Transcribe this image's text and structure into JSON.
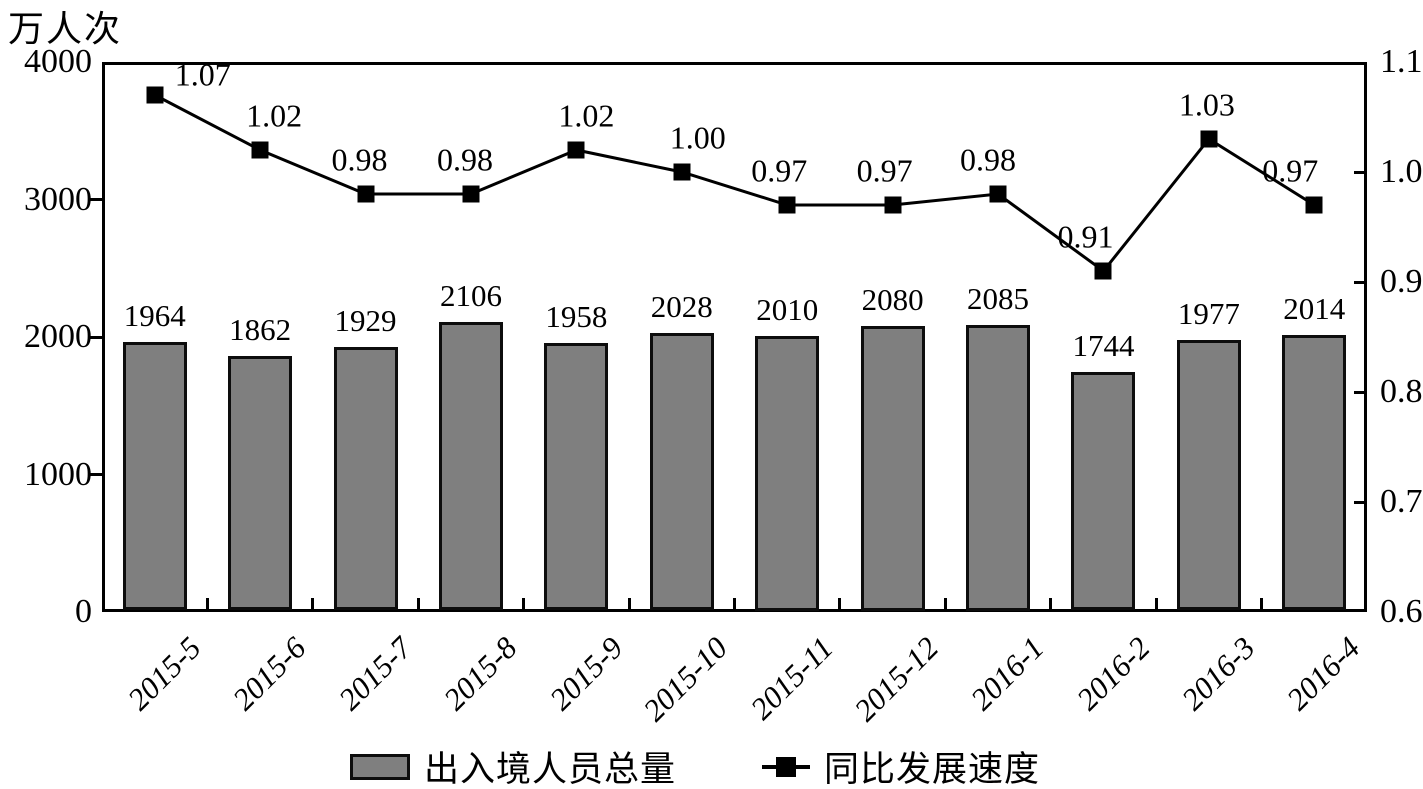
{
  "title": "万人次",
  "colors": {
    "bar_fill": "#7f7f7f",
    "line": "#000000",
    "axis": "#000000",
    "background": "#ffffff",
    "text": "#000000"
  },
  "chart_data": {
    "type": "bar",
    "subtype": "bar+line combo, dual y-axes",
    "categories": [
      "2015-5",
      "2015-6",
      "2015-7",
      "2015-8",
      "2015-9",
      "2015-10",
      "2015-11",
      "2015-12",
      "2016-1",
      "2016-2",
      "2016-3",
      "2016-4"
    ],
    "series": [
      {
        "name": "出入境人员总量",
        "type": "bar",
        "axis": "left",
        "values": [
          1964,
          1862,
          1929,
          2106,
          1958,
          2028,
          2010,
          2080,
          2085,
          1744,
          1977,
          2014
        ],
        "labels": [
          "1964",
          "1862",
          "1929",
          "2106",
          "1958",
          "2028",
          "2010",
          "2080",
          "2085",
          "1744",
          "1977",
          "2014"
        ]
      },
      {
        "name": "同比发展速度",
        "type": "line",
        "axis": "right",
        "values": [
          1.07,
          1.02,
          0.98,
          0.98,
          1.02,
          1.0,
          0.97,
          0.97,
          0.98,
          0.91,
          1.03,
          0.97
        ],
        "labels": [
          "1.07",
          "1.02",
          "0.98",
          "0.98",
          "1.02",
          "1.00",
          "0.97",
          "0.97",
          "0.98",
          "0.91",
          "1.03",
          "0.97"
        ],
        "label_offsets": [
          [
            48,
            14
          ],
          [
            14,
            0
          ],
          [
            -6,
            0
          ],
          [
            -6,
            0
          ],
          [
            10,
            0
          ],
          [
            16,
            0
          ],
          [
            -8,
            0
          ],
          [
            -8,
            0
          ],
          [
            -10,
            0
          ],
          [
            -18,
            0
          ],
          [
            -2,
            0
          ],
          [
            -24,
            0
          ]
        ]
      }
    ],
    "left_axis": {
      "label": "万人次",
      "min": 0,
      "max": 4000,
      "ticks": [
        "4000",
        "3000",
        "2000",
        "1000",
        "0"
      ],
      "tick_values": [
        4000,
        3000,
        2000,
        1000,
        0
      ]
    },
    "right_axis": {
      "min": 0.6,
      "max": 1.1,
      "ticks": [
        "1.1",
        "1.0",
        "0.9",
        "0.8",
        "0.7",
        "0.6"
      ],
      "tick_values": [
        1.1,
        1.0,
        0.9,
        0.8,
        0.7,
        0.6
      ]
    },
    "grid": false,
    "legend_position": "bottom",
    "legend": [
      {
        "label": "出入境人员总量",
        "marker": "gray-rect"
      },
      {
        "label": "同比发展速度",
        "marker": "line-with-square"
      }
    ]
  }
}
